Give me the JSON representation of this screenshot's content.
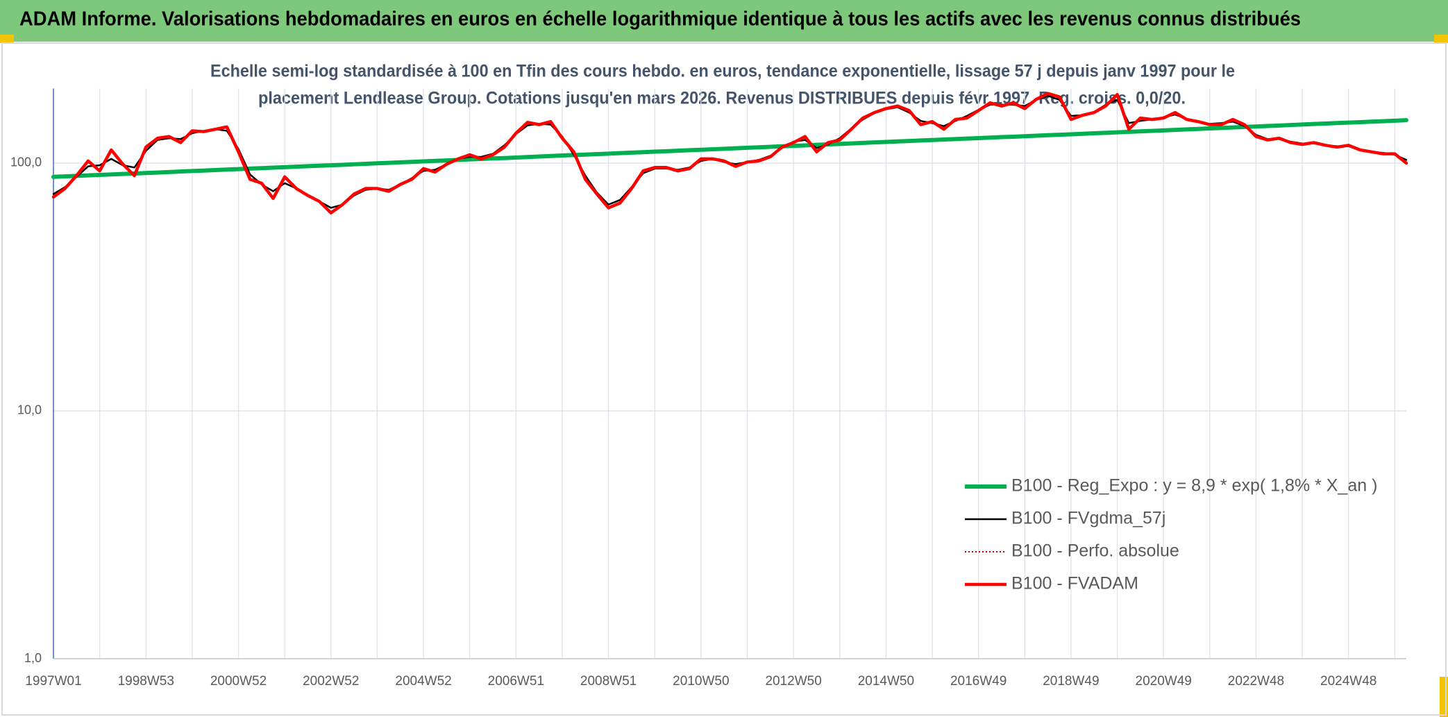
{
  "chart_data": {
    "type": "line",
    "title": "ADAM Informe. Valorisations hebdomadaires en euros en échelle logarithmique identique à tous les actifs avec les revenus connus distribués",
    "subtitle": [
      "Echelle semi-log standardisée à 100 en Tfin des cours hebdo. en euros, tendance exponentielle, lissage 57 j depuis janv 1997 pour le",
      "placement Lendlease Group. Cotations jusqu'en mars 2026. Revenus DISTRIBUES depuis févr 1997. Reg. croiss. 0,0/20."
    ],
    "log_scale": true,
    "grid": true,
    "legend": "lower right",
    "ylim": [
      1,
      200
    ],
    "yticks": [
      {
        "value": 1,
        "label": "1,0"
      },
      {
        "value": 10,
        "label": "10,0"
      },
      {
        "value": 100,
        "label": "100,0"
      }
    ],
    "categories": [
      "1997W01",
      null,
      null,
      null,
      null,
      null,
      null,
      null,
      "1998W53",
      null,
      null,
      null,
      null,
      null,
      null,
      null,
      "2000W52",
      null,
      null,
      null,
      null,
      null,
      null,
      null,
      "2002W52",
      null,
      null,
      null,
      null,
      null,
      null,
      null,
      "2004W52",
      null,
      null,
      null,
      null,
      null,
      null,
      null,
      "2006W51",
      null,
      null,
      null,
      null,
      null,
      null,
      null,
      "2008W51",
      null,
      null,
      null,
      null,
      null,
      null,
      null,
      "2010W50",
      null,
      null,
      null,
      null,
      null,
      null,
      null,
      "2012W50",
      null,
      null,
      null,
      null,
      null,
      null,
      null,
      "2014W50",
      null,
      null,
      null,
      null,
      null,
      null,
      null,
      "2016W49",
      null,
      null,
      null,
      null,
      null,
      null,
      null,
      "2018W49",
      null,
      null,
      null,
      null,
      null,
      null,
      null,
      "2020W49",
      null,
      null,
      null,
      null,
      null,
      null,
      null,
      "2022W48",
      null,
      null,
      null,
      null,
      null,
      null,
      null,
      "2024W48",
      null,
      null,
      null,
      null,
      null
    ],
    "series": [
      {
        "name": "B100 - Reg_Expo : y = 8,9 * exp( 1,8% *  X_an )",
        "color": "#00b050",
        "values": [
          88.0,
          88.4,
          88.8,
          89.2,
          89.6,
          90.0,
          90.4,
          90.8,
          91.2,
          91.6,
          92.0,
          92.5,
          92.9,
          93.3,
          93.7,
          94.2,
          94.6,
          95.0,
          95.4,
          95.9,
          96.3,
          96.7,
          97.2,
          97.6,
          98.0,
          98.4,
          98.9,
          99.3,
          99.8,
          100.2,
          100.7,
          101.1,
          101.6,
          102.1,
          102.5,
          103.0,
          103.5,
          103.9,
          104.4,
          104.8,
          105.3,
          105.8,
          106.3,
          106.8,
          107.3,
          107.8,
          108.2,
          108.7,
          109.2,
          109.7,
          110.2,
          110.7,
          111.2,
          111.7,
          112.2,
          112.7,
          113.2,
          113.7,
          114.2,
          114.8,
          115.3,
          115.8,
          116.3,
          116.9,
          117.4,
          117.9,
          118.5,
          119.0,
          119.5,
          120.1,
          120.6,
          121.2,
          121.7,
          122.3,
          122.8,
          123.4,
          123.9,
          124.5,
          125.0,
          125.6,
          126.1,
          126.7,
          127.3,
          127.8,
          128.4,
          129.0,
          129.6,
          130.1,
          130.7,
          131.3,
          131.9,
          132.5,
          133.1,
          133.7,
          134.3,
          134.9,
          135.5,
          136.1,
          136.8,
          137.4,
          138.0,
          138.6,
          139.3,
          139.9,
          140.5,
          141.2,
          141.8,
          142.5,
          143.1,
          143.8,
          144.4,
          145.1,
          145.7,
          146.3,
          147.0,
          147.6,
          148.3,
          149.0
        ]
      },
      {
        "name": "B100 - FVgdma_57j",
        "color": "#000000",
        "values": [
          75,
          80,
          88,
          97,
          98,
          104,
          98,
          96,
          112,
          124,
          126,
          125,
          132,
          135,
          137,
          135,
          114,
          90,
          82,
          77,
          83,
          79,
          74,
          70,
          66,
          68,
          74,
          78,
          79,
          78,
          82,
          87,
          93,
          94,
          99,
          104,
          106,
          106,
          109,
          118,
          131,
          142,
          144,
          143,
          128,
          108,
          89,
          76,
          68,
          71,
          80,
          91,
          95,
          95,
          94,
          96,
          102,
          104,
          101,
          99,
          101,
          103,
          107,
          115,
          122,
          124,
          115,
          119,
          126,
          138,
          150,
          159,
          165,
          168,
          160,
          148,
          145,
          141,
          148,
          155,
          164,
          172,
          172,
          172,
          170,
          180,
          187,
          180,
          155,
          156,
          161,
          172,
          180,
          145,
          148,
          150,
          153,
          157,
          151,
          147,
          144,
          145,
          147,
          141,
          130,
          125,
          125,
          122,
          120,
          120,
          118,
          117,
          117,
          113,
          111,
          110,
          108,
          103
        ]
      },
      {
        "name": "B100 - Perfo. absolue",
        "color": "#c00000",
        "values": [
          73,
          79,
          89,
          102,
          93,
          113,
          99,
          89,
          116,
          126,
          128,
          121,
          135,
          134,
          137,
          140,
          111,
          86,
          83,
          72,
          88,
          79,
          74,
          70,
          63,
          68,
          75,
          79,
          79,
          77,
          82,
          86,
          95,
          92,
          99,
          104,
          108,
          104,
          108,
          116,
          132,
          146,
          143,
          147,
          126,
          111,
          86,
          75,
          66,
          69,
          79,
          93,
          96,
          96,
          93,
          95,
          104,
          104,
          102,
          97,
          101,
          102,
          106,
          116,
          121,
          128,
          111,
          121,
          124,
          137,
          152,
          160,
          166,
          170,
          163,
          143,
          147,
          137,
          150,
          152,
          163,
          175,
          170,
          175,
          166,
          181,
          191,
          185,
          150,
          156,
          160,
          170,
          189,
          137,
          152,
          150,
          152,
          160,
          150,
          147,
          143,
          143,
          150,
          143,
          128,
          124,
          126,
          121,
          119,
          121,
          118,
          116,
          118,
          113,
          111,
          109,
          109,
          100
        ]
      },
      {
        "name": "B100 - FVADAM",
        "color": "#ff0000",
        "values": [
          73,
          79,
          89,
          102,
          93,
          113,
          99,
          89,
          116,
          126,
          128,
          121,
          135,
          134,
          137,
          140,
          111,
          86,
          83,
          72,
          88,
          79,
          74,
          70,
          63,
          68,
          75,
          79,
          79,
          77,
          82,
          86,
          95,
          92,
          99,
          104,
          108,
          104,
          108,
          116,
          132,
          146,
          143,
          147,
          126,
          111,
          86,
          75,
          66,
          69,
          79,
          93,
          96,
          96,
          93,
          95,
          104,
          104,
          102,
          97,
          101,
          102,
          106,
          116,
          121,
          128,
          111,
          121,
          124,
          137,
          152,
          160,
          166,
          170,
          163,
          143,
          147,
          137,
          150,
          152,
          163,
          175,
          170,
          175,
          166,
          181,
          191,
          185,
          150,
          156,
          160,
          170,
          189,
          137,
          152,
          150,
          152,
          160,
          150,
          147,
          143,
          143,
          150,
          143,
          128,
          124,
          126,
          121,
          119,
          121,
          118,
          116,
          118,
          113,
          111,
          109,
          109,
          100
        ]
      }
    ]
  }
}
